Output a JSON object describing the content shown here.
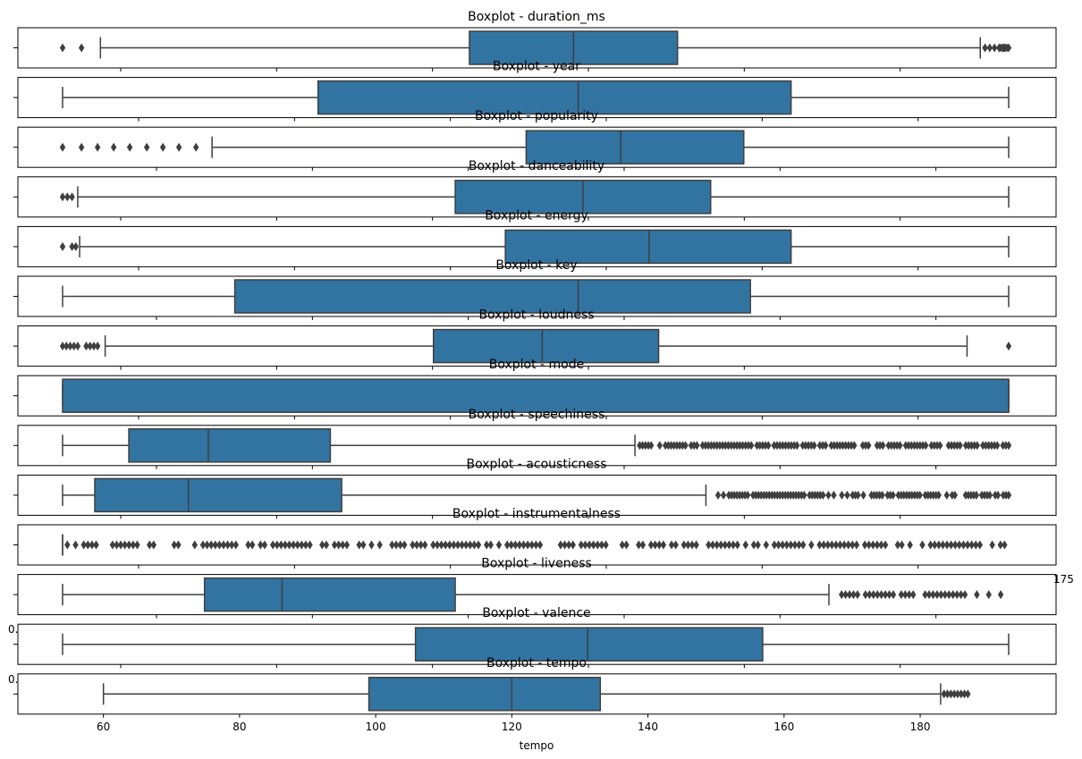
{
  "chart_data": {
    "type": "boxplot",
    "orientation": "horizontal",
    "colors": {
      "box": "#3274a1",
      "line": "#3f3f3f",
      "flier": "#3f3f3f"
    },
    "panels": [
      {
        "title": "Boxplot - duration_ms",
        "xlim": [
          0,
          1
        ],
        "whisker_low": 0.04,
        "q1": 0.43,
        "median": 0.54,
        "q3": 0.65,
        "whisker_high": 0.97,
        "fliers": [
          0.0,
          0.02,
          0.975,
          0.98,
          0.985,
          0.99,
          0.995,
          1.0,
          0.99,
          0.992,
          0.994,
          0.996,
          0.998
        ]
      },
      {
        "title": "Boxplot - year",
        "xlim": [
          0,
          1
        ],
        "whisker_low": 0.0,
        "q1": 0.27,
        "median": 0.545,
        "q3": 0.77,
        "whisker_high": 1.0,
        "fliers": []
      },
      {
        "title": "Boxplot - popularity",
        "xlim": [
          0,
          1
        ],
        "whisker_low": 0.158,
        "q1": 0.49,
        "median": 0.59,
        "q3": 0.72,
        "whisker_high": 1.0,
        "fliers": [
          0.0,
          0.02,
          0.037,
          0.054,
          0.071,
          0.089,
          0.106,
          0.123,
          0.141
        ]
      },
      {
        "title": "Boxplot - danceability",
        "xlim": [
          0,
          1
        ],
        "whisker_low": 0.016,
        "q1": 0.415,
        "median": 0.55,
        "q3": 0.685,
        "whisker_high": 1.0,
        "fliers": [
          0.0,
          0.005,
          0.01
        ]
      },
      {
        "title": "Boxplot - energy",
        "xlim": [
          0,
          1
        ],
        "whisker_low": 0.018,
        "q1": 0.468,
        "median": 0.62,
        "q3": 0.77,
        "whisker_high": 1.0,
        "fliers": [
          0.0,
          0.01,
          0.014
        ]
      },
      {
        "title": "Boxplot - key",
        "xlim": [
          0,
          1
        ],
        "whisker_low": 0.0,
        "q1": 0.182,
        "median": 0.545,
        "q3": 0.727,
        "whisker_high": 1.0,
        "fliers": []
      },
      {
        "title": "Boxplot - loudness",
        "xlim": [
          0,
          1
        ],
        "whisker_low": 0.045,
        "q1": 0.392,
        "median": 0.507,
        "q3": 0.63,
        "whisker_high": 0.956,
        "fliers": [
          0.0,
          0.004,
          0.008,
          0.012,
          0.016,
          0.025,
          0.029,
          0.033,
          0.037,
          1.0
        ]
      },
      {
        "title": "Boxplot - mode",
        "xlim": [
          0,
          1
        ],
        "whisker_low": 0.0,
        "q1": 0.0,
        "median": 1.0,
        "q3": 1.0,
        "whisker_high": 1.0,
        "fliers": []
      },
      {
        "title": "Boxplot - speechiness",
        "xlim": [
          0,
          1
        ],
        "whisker_low": 0.0,
        "q1": 0.07,
        "median": 0.154,
        "q3": 0.283,
        "whisker_high": 0.605,
        "flier_range": [
          0.61,
          1.0
        ],
        "flier_count": 130
      },
      {
        "title": "Boxplot - acousticness",
        "xlim": [
          0,
          1
        ],
        "whisker_low": 0.0,
        "q1": 0.034,
        "median": 0.133,
        "q3": 0.295,
        "whisker_high": 0.68,
        "flier_range": [
          0.69,
          1.0
        ],
        "flier_count": 110
      },
      {
        "title": "Boxplot - instrumentalness",
        "xlim": [
          0,
          1
        ],
        "whisker_low": 0.0,
        "q1": 0.0,
        "median": 0.0,
        "q3": 0.0,
        "whisker_high": 0.0,
        "flier_range": [
          0.005,
          1.0
        ],
        "flier_count": 230
      },
      {
        "title": "Boxplot - liveness",
        "xlim": [
          0,
          1
        ],
        "whisker_low": 0.0,
        "q1": 0.15,
        "median": 0.232,
        "q3": 0.415,
        "whisker_high": 0.81,
        "flier_range": [
          0.815,
          1.0
        ],
        "flier_count": 45
      },
      {
        "title": "Boxplot - valence",
        "xlim": [
          0,
          1
        ],
        "whisker_low": 0.0,
        "q1": 0.373,
        "median": 0.555,
        "q3": 0.74,
        "whisker_high": 1.0,
        "fliers": []
      },
      {
        "title": "Boxplot - tempo",
        "xlim": [
          54,
          193
        ],
        "xlabel": "tempo",
        "xticks": [
          60,
          80,
          100,
          120,
          140,
          160,
          180
        ],
        "whisker_low": 60,
        "q1": 99,
        "median": 120,
        "q3": 133,
        "whisker_high": 183,
        "fliers": [
          183.5,
          184,
          184.5,
          185,
          185.5,
          186,
          186.5,
          187
        ]
      }
    ],
    "overlap_fragments": [
      "175",
      "0.",
      "0."
    ]
  }
}
